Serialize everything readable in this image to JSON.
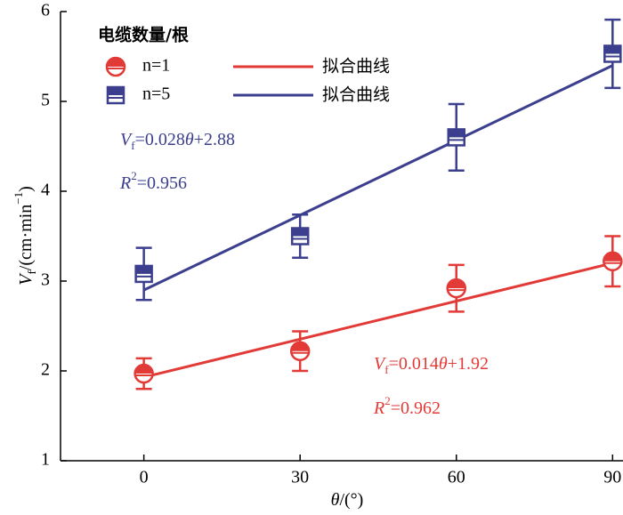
{
  "chart_data": {
    "type": "scatter",
    "x": [
      0,
      30,
      60,
      90
    ],
    "xlim": [
      -16,
      92
    ],
    "xticks": [
      0,
      30,
      60,
      90
    ],
    "ylim": [
      1,
      6
    ],
    "yticks": [
      1,
      2,
      3,
      4,
      5,
      6
    ],
    "x_label": [
      {
        "text": "θ",
        "italic": true
      },
      {
        "text": "/(°)"
      }
    ],
    "y_label": [
      {
        "text": "V",
        "italic": true
      },
      {
        "text": "f",
        "sub": true
      },
      {
        "text": "/(cm·min"
      },
      {
        "text": "−1",
        "sup": true
      },
      {
        "text": ")"
      }
    ],
    "legend_title": "电缆数量/根",
    "series": [
      {
        "name": "n=1",
        "color": "#e23a36",
        "marker": "circle",
        "values": [
          1.97,
          2.22,
          2.92,
          3.22
        ],
        "errors": [
          0.17,
          0.22,
          0.26,
          0.28
        ]
      },
      {
        "name": "n=5",
        "color": "#3b3f8e",
        "marker": "square",
        "values": [
          3.08,
          3.5,
          4.6,
          5.53
        ],
        "errors": [
          0.29,
          0.24,
          0.37,
          0.38
        ]
      }
    ],
    "fits": [
      {
        "name": "拟合曲线",
        "color": "#e23a36",
        "x": [
          0,
          90
        ],
        "values": [
          1.93,
          3.2
        ]
      },
      {
        "name": "拟合曲线",
        "color": "#3b3f8e",
        "x": [
          0,
          90
        ],
        "values": [
          2.9,
          5.4
        ]
      }
    ],
    "annotations": [
      {
        "color": "#3b3f8e",
        "parts": [
          {
            "text": "V",
            "italic": true
          },
          {
            "text": "f",
            "sub": true
          },
          {
            "text": "=0.028"
          },
          {
            "text": "θ",
            "italic": true
          },
          {
            "text": "+2.88"
          }
        ]
      },
      {
        "color": "#3b3f8e",
        "parts": [
          {
            "text": "R",
            "italic": true
          },
          {
            "text": "2",
            "sup": true
          },
          {
            "text": "=0.956"
          }
        ]
      },
      {
        "color": "#e23a36",
        "parts": [
          {
            "text": "V",
            "italic": true
          },
          {
            "text": "f",
            "sub": true
          },
          {
            "text": "=0.014"
          },
          {
            "text": "θ",
            "italic": true
          },
          {
            "text": "+1.92"
          }
        ]
      },
      {
        "color": "#e23a36",
        "parts": [
          {
            "text": "R",
            "italic": true
          },
          {
            "text": "2",
            "sup": true
          },
          {
            "text": "=0.962"
          }
        ]
      }
    ]
  }
}
